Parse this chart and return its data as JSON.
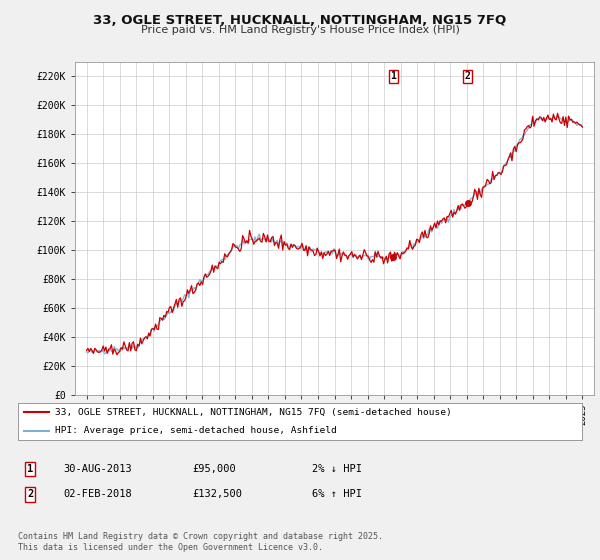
{
  "title": "33, OGLE STREET, HUCKNALL, NOTTINGHAM, NG15 7FQ",
  "subtitle": "Price paid vs. HM Land Registry's House Price Index (HPI)",
  "ylabel_ticks": [
    "£0",
    "£20K",
    "£40K",
    "£60K",
    "£80K",
    "£100K",
    "£120K",
    "£140K",
    "£160K",
    "£180K",
    "£200K",
    "£220K"
  ],
  "ylim": [
    0,
    230000
  ],
  "ytick_vals": [
    0,
    20000,
    40000,
    60000,
    80000,
    100000,
    120000,
    140000,
    160000,
    180000,
    200000,
    220000
  ],
  "legend_line1": "33, OGLE STREET, HUCKNALL, NOTTINGHAM, NG15 7FQ (semi-detached house)",
  "legend_line2": "HPI: Average price, semi-detached house, Ashfield",
  "line1_color": "#cc0000",
  "line2_color": "#7ab0d4",
  "annotation1_label": "1",
  "annotation1_date": "30-AUG-2013",
  "annotation1_price": "£95,000",
  "annotation1_hpi": "2% ↓ HPI",
  "annotation2_label": "2",
  "annotation2_date": "02-FEB-2018",
  "annotation2_price": "£132,500",
  "annotation2_hpi": "6% ↑ HPI",
  "footer": "Contains HM Land Registry data © Crown copyright and database right 2025.\nThis data is licensed under the Open Government Licence v3.0.",
  "background_color": "#f0f0f0",
  "plot_bg_color": "#ffffff",
  "grid_color": "#cccccc",
  "anno_box_color": "#cc0000"
}
